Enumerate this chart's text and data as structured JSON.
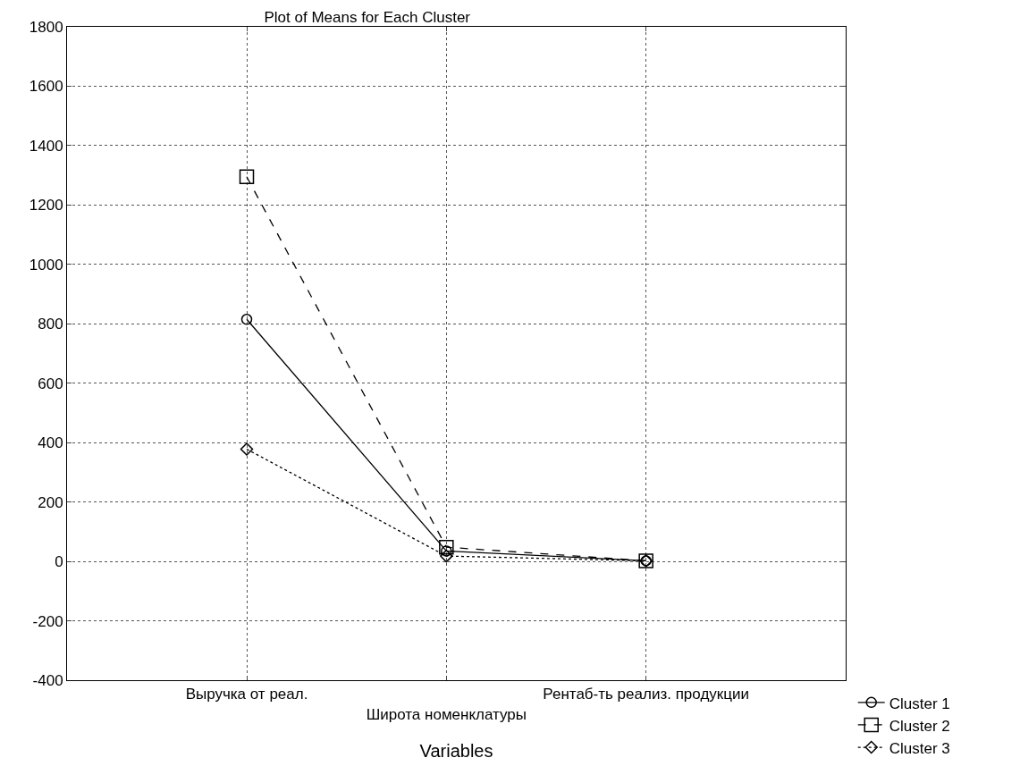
{
  "chart_data": {
    "type": "line",
    "title": "Plot of Means for Each Cluster",
    "xlabel": "Variables",
    "categories": [
      "Выручка от реал.",
      "Широта номенклатуры",
      "Рентаб-ть реализ. продукции"
    ],
    "series": [
      {
        "name": "Cluster 1",
        "color": "#000000",
        "values": [
          815,
          35,
          2
        ],
        "marker": "circle",
        "line_style": "solid"
      },
      {
        "name": "Cluster 2",
        "color": "#000000",
        "values": [
          1295,
          48,
          2
        ],
        "marker": "square",
        "line_style": "dashed"
      },
      {
        "name": "Cluster 3",
        "color": "#000000",
        "values": [
          378,
          18,
          2
        ],
        "marker": "diamond",
        "line_style": "dotted"
      }
    ],
    "ylim": [
      -400,
      1800
    ],
    "yticks": [
      -400,
      -200,
      0,
      200,
      400,
      600,
      800,
      1000,
      1200,
      1400,
      1600,
      1800
    ],
    "grid": true,
    "legend": "bottom right"
  }
}
